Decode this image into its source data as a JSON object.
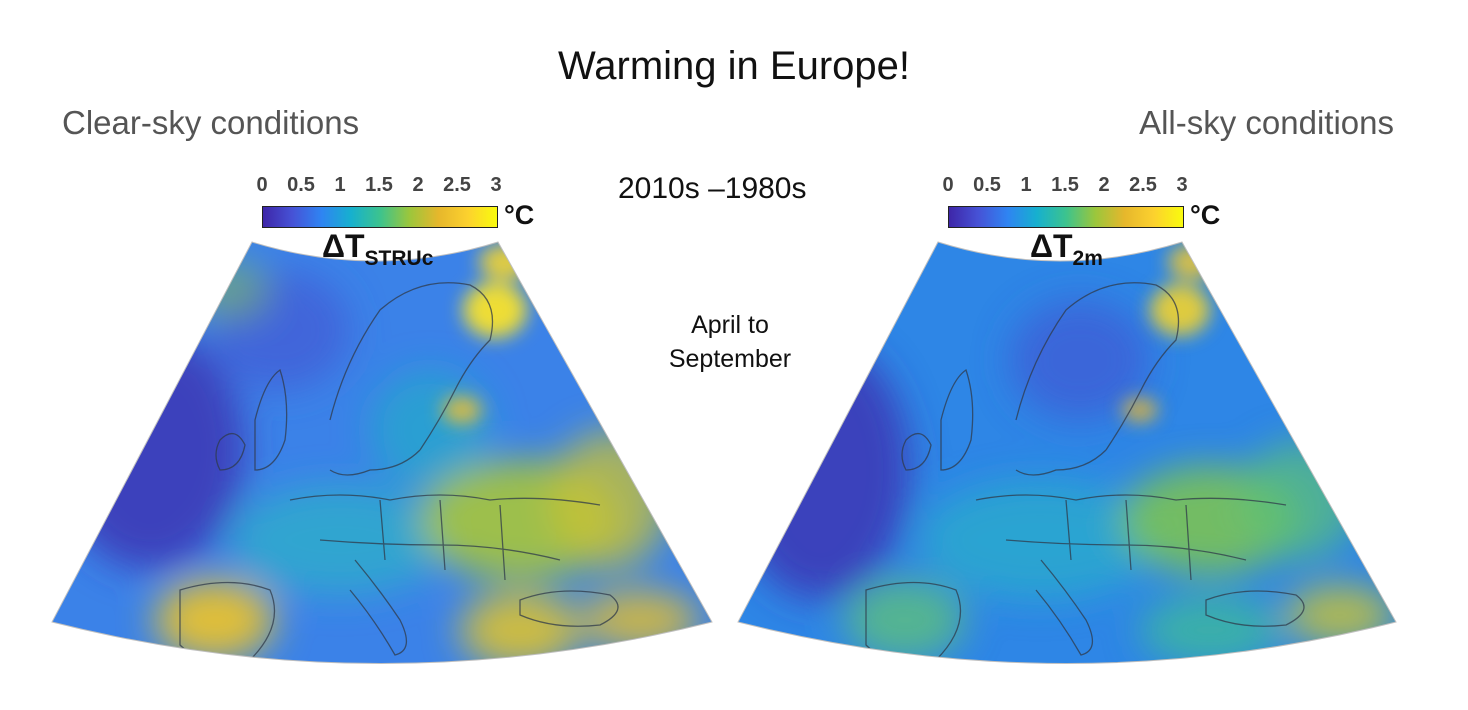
{
  "header": {
    "title": "Warming in Europe!",
    "period": "2010s –1980s",
    "season": [
      "April to",
      "September"
    ]
  },
  "colorbar": {
    "ticks": [
      "0",
      "0.5",
      "1",
      "1.5",
      "2",
      "2.5",
      "3"
    ],
    "unit": "°C",
    "range": [
      0,
      3
    ],
    "colors": [
      "#3e26a8",
      "#4652d6",
      "#2f84f2",
      "#16b0cf",
      "#3cc38e",
      "#9bc63c",
      "#e6b72c",
      "#fcd12e",
      "#f9fb0e"
    ]
  },
  "panels": [
    {
      "subtitle": "Clear-sky conditions",
      "variable_symbol": "ΔT",
      "variable_subscript": "STRUc",
      "base_color": "#3b82e8",
      "hotspot_color": "#f2c531"
    },
    {
      "subtitle": "All-sky conditions",
      "variable_symbol": "ΔT",
      "variable_subscript": "2m",
      "base_color": "#2e86e6",
      "hotspot_color": "#8fc94a"
    }
  ]
}
